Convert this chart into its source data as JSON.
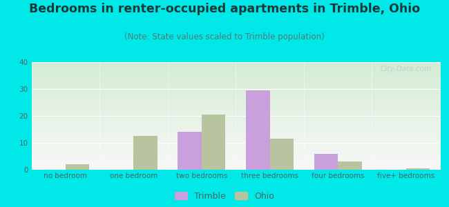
{
  "title": "Bedrooms in renter-occupied apartments in Trimble, Ohio",
  "subtitle": "(Note: State values scaled to Trimble population)",
  "categories": [
    "no bedroom",
    "one bedroom",
    "two bedrooms",
    "three bedrooms",
    "four bedrooms",
    "five+ bedrooms"
  ],
  "trimble_values": [
    0,
    0,
    14,
    29.5,
    6,
    0
  ],
  "ohio_values": [
    2,
    12.5,
    20.5,
    11.5,
    3,
    0.5
  ],
  "trimble_color": "#c9a0dc",
  "ohio_color": "#b8c4a0",
  "background_color": "#00e8e8",
  "plot_bg_top": "#d4ecd4",
  "plot_bg_bottom": "#f8f8f8",
  "ylim": [
    0,
    40
  ],
  "yticks": [
    0,
    10,
    20,
    30,
    40
  ],
  "bar_width": 0.35,
  "title_fontsize": 12.5,
  "subtitle_fontsize": 8.5,
  "tick_fontsize": 7.5,
  "legend_fontsize": 9,
  "watermark": "City-Data.com"
}
